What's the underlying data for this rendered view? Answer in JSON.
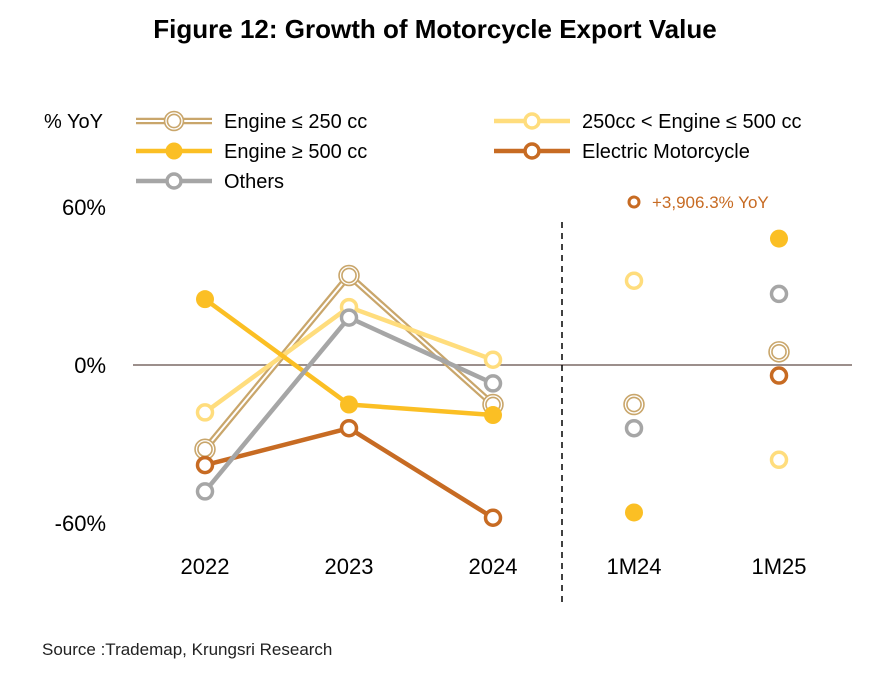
{
  "title": "Figure 12:  Growth of Motorcycle Export Value",
  "source": "Source :Trademap, Krungsri Research",
  "chart_data": {
    "type": "line",
    "ylabel": "% YoY",
    "ylim": [
      -60,
      60
    ],
    "yticks": [
      {
        "value": 60,
        "label": "60%"
      },
      {
        "value": 0,
        "label": "0%"
      },
      {
        "value": -60,
        "label": "-60%"
      }
    ],
    "categories": [
      "2022",
      "2023",
      "2024",
      "1M24",
      "1M25"
    ],
    "lines_through": [
      "2022",
      "2023",
      "2024"
    ],
    "legend_position": "top",
    "series": [
      {
        "name": "Engine ≤ 250 cc",
        "color": "#c9a66b",
        "style": "double",
        "values": [
          -32,
          34,
          -15,
          -15,
          5
        ]
      },
      {
        "name": "250cc < Engine ≤ 500 cc",
        "color": "#ffdd7d",
        "style": "solid",
        "values": [
          -18,
          22,
          2,
          32,
          -36
        ]
      },
      {
        "name": "Engine ≥ 500 cc",
        "color": "#fbbf24",
        "style": "solid",
        "filled": true,
        "values": [
          25,
          -15,
          -19,
          -56,
          48
        ]
      },
      {
        "name": "Electric Motorcycle",
        "color": "#c76b23",
        "style": "solid",
        "values": [
          -38,
          -24,
          -58,
          null,
          -4
        ]
      },
      {
        "name": "Others",
        "color": "#a6a6a6",
        "style": "solid",
        "values": [
          -48,
          18,
          -7,
          -24,
          27
        ]
      }
    ],
    "annotation": {
      "text": "+3,906.3% YoY",
      "category": "1M24",
      "series": "Electric Motorcycle",
      "color": "#c76b23"
    }
  }
}
